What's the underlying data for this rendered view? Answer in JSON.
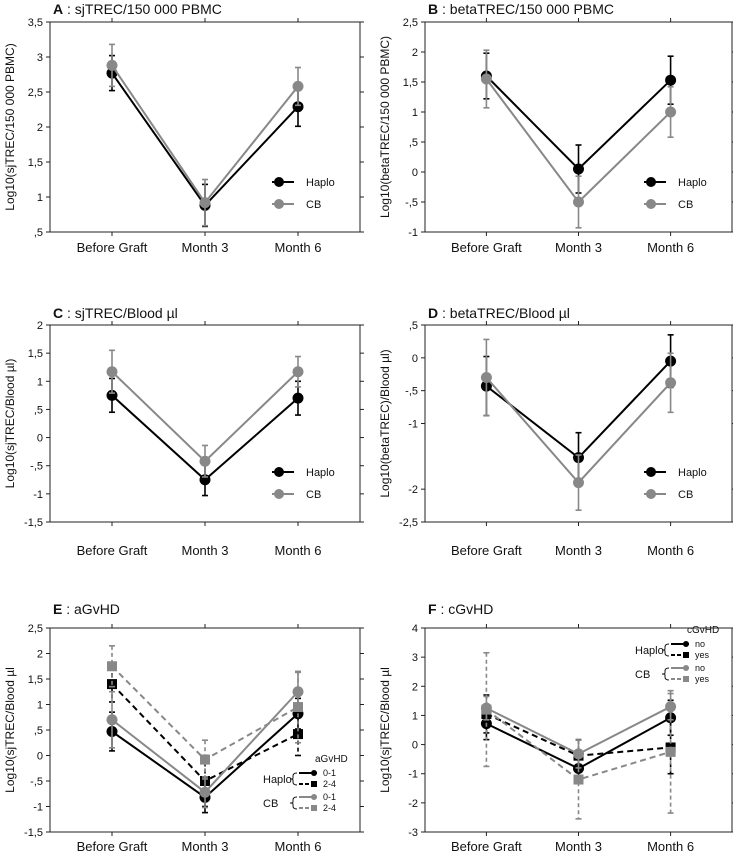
{
  "chart_data": [
    {
      "type": "line",
      "letter": "A",
      "title": "sjTREC/150 000 PBMC",
      "ylabel": "Log10(sjTREC/150 000 PBMC)",
      "categories": [
        "Before Graft",
        "Month 3",
        "Month 6"
      ],
      "ylim": [
        0.5,
        3.5
      ],
      "yticks": [
        3.5,
        3,
        2.5,
        2,
        1.5,
        1,
        0.5
      ],
      "ytick_labels": [
        "3,5",
        "3",
        "2,5",
        "2",
        "1,5",
        "1",
        ",5"
      ],
      "series": [
        {
          "name": "Haplo",
          "color": "#000000",
          "dash": "",
          "marker": "circle",
          "values": [
            2.77,
            0.88,
            2.29
          ],
          "err": [
            0.25,
            0.3,
            0.28
          ]
        },
        {
          "name": "CB",
          "color": "#888888",
          "dash": "",
          "marker": "circle",
          "values": [
            2.88,
            0.92,
            2.58
          ],
          "err": [
            0.3,
            0.33,
            0.27
          ]
        }
      ],
      "legend": {
        "position": "lower-right",
        "labels": [
          "Haplo",
          "CB"
        ]
      }
    },
    {
      "type": "line",
      "letter": "B",
      "title": "betaTREC/150 000 PBMC",
      "ylabel": "Log10(betaTREC/150 000 PBMC)",
      "categories": [
        "Before Graft",
        "Month 3",
        "Month 6"
      ],
      "ylim": [
        -1,
        2.5
      ],
      "yticks": [
        2.5,
        2,
        1.5,
        1,
        0.5,
        0,
        -0.5,
        -1
      ],
      "ytick_labels": [
        "2,5",
        "2",
        "1,5",
        "1",
        ",5",
        "0",
        "-,5",
        "-1"
      ],
      "series": [
        {
          "name": "Haplo",
          "color": "#000000",
          "dash": "",
          "marker": "circle",
          "values": [
            1.6,
            0.05,
            1.53
          ],
          "err": [
            0.38,
            0.4,
            0.4
          ]
        },
        {
          "name": "CB",
          "color": "#888888",
          "dash": "",
          "marker": "circle",
          "values": [
            1.55,
            -0.5,
            1.0
          ],
          "err": [
            0.48,
            0.43,
            0.42
          ]
        }
      ],
      "legend": {
        "position": "lower-right",
        "labels": [
          "Haplo",
          "CB"
        ]
      }
    },
    {
      "type": "line",
      "letter": "C",
      "title": "sjTREC/Blood µl",
      "ylabel": "Log10(sjTREC/Blood µl)",
      "categories": [
        "Before Graft",
        "Month 3",
        "Month 6"
      ],
      "ylim": [
        -1.5,
        2
      ],
      "yticks": [
        2,
        1.5,
        1,
        0.5,
        0,
        -0.5,
        -1,
        -1.5
      ],
      "ytick_labels": [
        "2",
        "1,5",
        "1",
        ",5",
        "0",
        "-,5",
        "-1",
        "-1,5"
      ],
      "series": [
        {
          "name": "Haplo",
          "color": "#000000",
          "dash": "",
          "marker": "circle",
          "values": [
            0.75,
            -0.75,
            0.7
          ],
          "err": [
            0.3,
            0.28,
            0.3
          ]
        },
        {
          "name": "CB",
          "color": "#888888",
          "dash": "",
          "marker": "circle",
          "values": [
            1.17,
            -0.42,
            1.17
          ],
          "err": [
            0.38,
            0.28,
            0.27
          ]
        }
      ],
      "legend": {
        "position": "lower-right",
        "labels": [
          "Haplo",
          "CB"
        ]
      }
    },
    {
      "type": "line",
      "letter": "D",
      "title": "betaTREC/Blood µl",
      "ylabel": "Log10(betaTREC)/Blood µl)",
      "categories": [
        "Before Graft",
        "Month 3",
        "Month 6"
      ],
      "ylim": [
        -2.5,
        0.5
      ],
      "yticks": [
        0.5,
        0,
        -0.5,
        -1,
        -2,
        -2.5
      ],
      "ytick_labels": [
        ",5",
        "0",
        "-,5",
        "-1",
        "-2",
        "-2,5"
      ],
      "series": [
        {
          "name": "Haplo",
          "color": "#000000",
          "dash": "",
          "marker": "circle",
          "values": [
            -0.43,
            -1.52,
            -0.05
          ],
          "err": [
            0.45,
            0.38,
            0.4
          ]
        },
        {
          "name": "CB",
          "color": "#888888",
          "dash": "",
          "marker": "circle",
          "values": [
            -0.3,
            -1.9,
            -0.38
          ],
          "err": [
            0.58,
            0.42,
            0.45
          ]
        }
      ],
      "legend": {
        "position": "lower-right",
        "labels": [
          "Haplo",
          "CB"
        ]
      }
    },
    {
      "type": "line",
      "letter": "E",
      "title": "aGvHD",
      "ylabel": "Log10(sjTREC/Blood µl",
      "categories": [
        "Before Graft",
        "Month 3",
        "Month 6"
      ],
      "ylim": [
        -1.5,
        2.5
      ],
      "yticks": [
        2.5,
        2,
        1.5,
        1,
        0.5,
        0,
        -0.5,
        -1,
        -1.5
      ],
      "ytick_labels": [
        "2,5",
        "2",
        "1,5",
        "1",
        ",5",
        "0",
        "-,5",
        "-1",
        "-1,5"
      ],
      "series": [
        {
          "name": "Haplo 0-1",
          "color": "#000000",
          "dash": "",
          "marker": "circle",
          "values": [
            0.47,
            -0.82,
            0.82
          ],
          "err": [
            0.38,
            0.3,
            0.3
          ]
        },
        {
          "name": "Haplo 2-4",
          "color": "#000000",
          "dash": "6,4",
          "marker": "square",
          "values": [
            1.4,
            -0.5,
            0.42
          ],
          "err": [
            0.35,
            0.5,
            0.42
          ]
        },
        {
          "name": "CB 0-1",
          "color": "#888888",
          "dash": "",
          "marker": "circle",
          "values": [
            0.7,
            -0.72,
            1.25
          ],
          "err": [
            0.55,
            0.3,
            0.38
          ]
        },
        {
          "name": "CB 2-4",
          "color": "#888888",
          "dash": "6,4",
          "marker": "square",
          "values": [
            1.75,
            -0.08,
            0.95
          ],
          "err": [
            0.4,
            0.38,
            0.7
          ]
        }
      ],
      "legend": {
        "position": "lower-right",
        "header": "aGvHD",
        "groups": [
          {
            "label": "Haplo",
            "items": [
              "0-1",
              "2-4"
            ]
          },
          {
            "label": "CB",
            "items": [
              "0-1",
              "2-4"
            ]
          }
        ]
      }
    },
    {
      "type": "line",
      "letter": "F",
      "title": "cGvHD",
      "ylabel": "Log10(sjTREC/Blood µl",
      "categories": [
        "Before Graft",
        "Month 3",
        "Month 6"
      ],
      "ylim": [
        -3,
        4
      ],
      "yticks": [
        4,
        3,
        2,
        1,
        0,
        -1,
        -2,
        -3
      ],
      "ytick_labels": [
        "4",
        "3",
        "2",
        "1",
        "0",
        "-1",
        "-2",
        "-3"
      ],
      "series": [
        {
          "name": "Haplo no",
          "color": "#000000",
          "dash": "",
          "marker": "circle",
          "values": [
            0.72,
            -0.82,
            0.92
          ],
          "err": [
            0.55,
            0.4,
            0.6
          ]
        },
        {
          "name": "Haplo yes",
          "color": "#000000",
          "dash": "6,4",
          "marker": "square",
          "values": [
            1.05,
            -0.38,
            -0.1
          ],
          "err": [
            0.65,
            0.55,
            0.9
          ]
        },
        {
          "name": "CB no",
          "color": "#888888",
          "dash": "",
          "marker": "circle",
          "values": [
            1.25,
            -0.32,
            1.3
          ],
          "err": [
            0.4,
            0.48,
            0.45
          ]
        },
        {
          "name": "CB yes",
          "color": "#888888",
          "dash": "6,4",
          "marker": "square",
          "values": [
            1.2,
            -1.2,
            -0.25
          ],
          "err": [
            1.95,
            1.35,
            2.1
          ]
        }
      ],
      "legend": {
        "position": "top-right",
        "header": "cGvHD",
        "groups": [
          {
            "label": "Haplo",
            "items": [
              "no",
              "yes"
            ]
          },
          {
            "label": "CB",
            "items": [
              "no",
              "yes"
            ]
          }
        ]
      }
    }
  ]
}
